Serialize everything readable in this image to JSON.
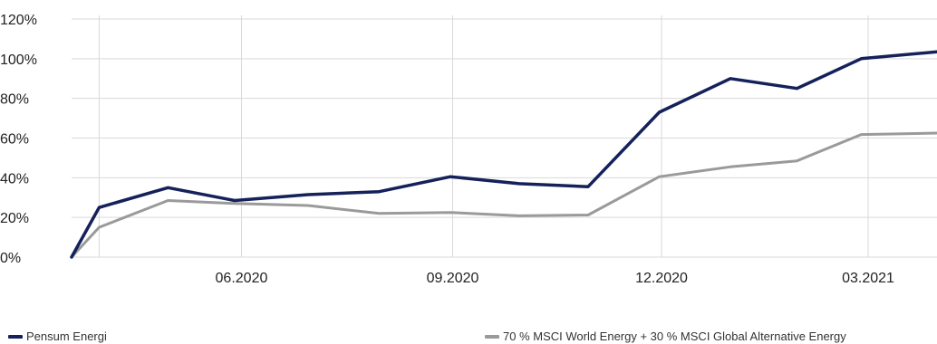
{
  "chart_data": {
    "type": "line",
    "title": "",
    "xlabel": "",
    "ylabel": "",
    "x_tick_labels": [
      "06.2020",
      "09.2020",
      "12.2020",
      "03.2021"
    ],
    "x_tick_dates": [
      "2020-06-01",
      "2020-09-01",
      "2020-12-01",
      "2021-03-01"
    ],
    "y_tick_labels": [
      "0%",
      "20%",
      "40%",
      "60%",
      "80%",
      "100%",
      "120%"
    ],
    "y_ticks": [
      0,
      20,
      40,
      60,
      80,
      100,
      120
    ],
    "ylim": [
      0,
      120
    ],
    "xlim": [
      "2020-03-19",
      "2021-03-31"
    ],
    "grid": true,
    "legend_position": "bottom",
    "x": [
      "2020-03-19",
      "2020-03-31",
      "2020-04-30",
      "2020-05-29",
      "2020-06-30",
      "2020-07-31",
      "2020-08-31",
      "2020-09-30",
      "2020-10-30",
      "2020-11-30",
      "2020-12-31",
      "2021-01-29",
      "2021-02-26",
      "2021-03-31"
    ],
    "series": [
      {
        "name": "Pensum Energi",
        "color": "#14215a",
        "values": [
          0,
          25,
          35,
          28.5,
          31.5,
          33,
          40.5,
          37,
          35.5,
          73,
          90,
          85,
          100,
          103.5
        ]
      },
      {
        "name": "70 % MSCI World Energy + 30 % MSCI Global Alternative Energy",
        "color": "#9a9a9a",
        "values": [
          0,
          15,
          28.5,
          27,
          26,
          22,
          22.5,
          20.8,
          21.2,
          40.5,
          45.5,
          48.5,
          61.8,
          62.5
        ]
      }
    ]
  }
}
